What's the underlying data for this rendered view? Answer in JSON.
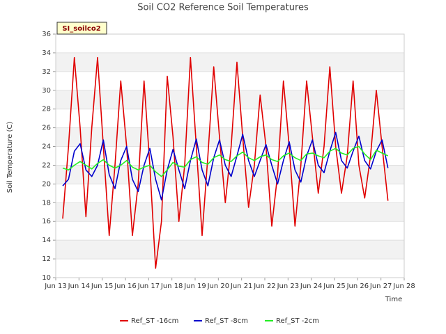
{
  "chart_data": {
    "type": "line",
    "title": "Soil CO2 Reference Soil Temperatures",
    "xlabel": "Time",
    "ylabel": "Soil Temperature (C)",
    "annotation": "SI_soilco2",
    "xlim": [
      13,
      28
    ],
    "xticks": [
      {
        "value": 13,
        "label": "Jun 13"
      },
      {
        "value": 14,
        "label": "Jun 14"
      },
      {
        "value": 15,
        "label": "Jun 15"
      },
      {
        "value": 16,
        "label": "Jun 16"
      },
      {
        "value": 17,
        "label": "Jun 17"
      },
      {
        "value": 18,
        "label": "Jun 18"
      },
      {
        "value": 19,
        "label": "Jun 19"
      },
      {
        "value": 20,
        "label": "Jun 20"
      },
      {
        "value": 21,
        "label": "Jun 21"
      },
      {
        "value": 22,
        "label": "Jun 22"
      },
      {
        "value": 23,
        "label": "Jun 23"
      },
      {
        "value": 24,
        "label": "Jun 24"
      },
      {
        "value": 25,
        "label": "Jun 25"
      },
      {
        "value": 26,
        "label": "Jun 26"
      },
      {
        "value": 27,
        "label": "Jun 27"
      },
      {
        "value": 28,
        "label": "Jun 28"
      }
    ],
    "ylim": [
      10,
      36
    ],
    "yticks": [
      10,
      12,
      14,
      16,
      18,
      20,
      22,
      24,
      26,
      28,
      30,
      32,
      34,
      36
    ],
    "grid": true,
    "legend": "bottom",
    "x": [
      13.3,
      13.55,
      13.8,
      14.05,
      14.3,
      14.55,
      14.8,
      15.05,
      15.3,
      15.55,
      15.8,
      16.05,
      16.3,
      16.55,
      16.8,
      17.05,
      17.3,
      17.55,
      17.8,
      18.05,
      18.3,
      18.55,
      18.8,
      19.05,
      19.3,
      19.55,
      19.8,
      20.05,
      20.3,
      20.55,
      20.8,
      21.05,
      21.3,
      21.55,
      21.8,
      22.05,
      22.3,
      22.55,
      22.8,
      23.05,
      23.3,
      23.55,
      23.8,
      24.05,
      24.3,
      24.55,
      24.8,
      25.05,
      25.3,
      25.55,
      25.8,
      26.05,
      26.3,
      26.55,
      26.8,
      27.05,
      27.3
    ],
    "series": [
      {
        "name": "Ref_ST -16cm",
        "color": "#e00000",
        "values": [
          16.3,
          24,
          33.5,
          26,
          16.5,
          26,
          33.5,
          24,
          14.5,
          22,
          31,
          24,
          14.5,
          20,
          31,
          22,
          11,
          16,
          31.5,
          25,
          16,
          22,
          33.5,
          24,
          14.5,
          23,
          32.5,
          25,
          18,
          24,
          33,
          25,
          17.5,
          22,
          29.5,
          24,
          15.5,
          21,
          31,
          24,
          15.5,
          22,
          31,
          25,
          19,
          24,
          32.5,
          24,
          19,
          23,
          31,
          22,
          18.5,
          23,
          30,
          24,
          18.2
        ]
      },
      {
        "name": "Ref_ST -8cm",
        "color": "#0000cc",
        "values": [
          19.8,
          20.5,
          23.5,
          24.3,
          21.5,
          20.8,
          22,
          24.7,
          21,
          19.5,
          22.5,
          24,
          20.5,
          19.2,
          22,
          23.8,
          20.5,
          18.3,
          21.5,
          23.7,
          21.5,
          19.5,
          22.5,
          24.8,
          21.5,
          19.8,
          22.8,
          24.7,
          22,
          20.8,
          23,
          25.3,
          22.5,
          20.8,
          22.5,
          24.2,
          22,
          20,
          22.5,
          24.5,
          21.5,
          20.2,
          23,
          24.7,
          22,
          21.2,
          23.5,
          25.5,
          22.5,
          21.7,
          23.5,
          25.1,
          22.5,
          21.6,
          23.5,
          24.7,
          21.7
        ]
      },
      {
        "name": "Ref_ST -2cm",
        "color": "#22ee22",
        "values": [
          21.7,
          21.5,
          22,
          22.4,
          22,
          21.6,
          22.2,
          22.6,
          22,
          21.7,
          22,
          22.5,
          21.8,
          21.5,
          21.8,
          22,
          21.3,
          20.8,
          21.5,
          22.3,
          21.9,
          21.8,
          22.6,
          22.9,
          22.3,
          22.1,
          22.8,
          23.1,
          22.6,
          22.4,
          23,
          23.4,
          22.8,
          22.5,
          22.9,
          23.1,
          22.6,
          22.4,
          23,
          23.3,
          22.8,
          22.5,
          23.2,
          23.3,
          23,
          22.8,
          23.5,
          23.8,
          23.3,
          23.1,
          23.8,
          24,
          23.2,
          22.6,
          23.6,
          23.3,
          23
        ]
      }
    ]
  }
}
